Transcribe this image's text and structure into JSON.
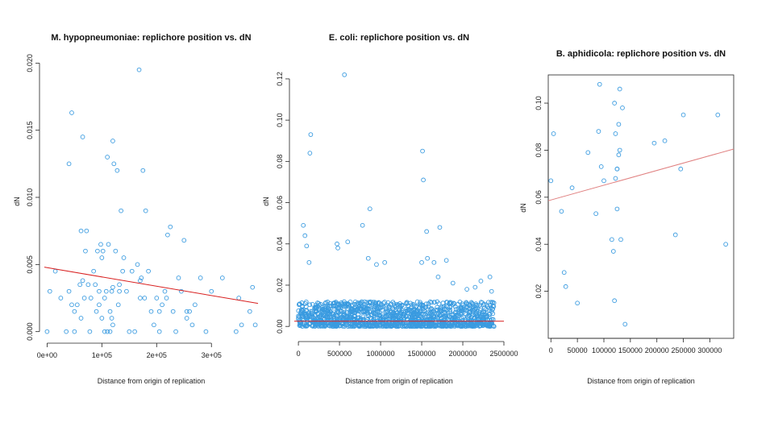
{
  "chart_data": [
    {
      "type": "scatter",
      "title": "M. hypopneumoniae: replichore position vs. dN",
      "xlabel": "Distance from origin of replication",
      "ylabel": "dN",
      "xlim": [
        -5000,
        385000
      ],
      "ylim": [
        -0.0005,
        0.0205
      ],
      "xticks": [
        0,
        100000,
        200000,
        300000
      ],
      "xtick_labels": [
        "0e+00",
        "1e+05",
        "2e+05",
        "3e+05"
      ],
      "yticks": [
        0.0,
        0.005,
        0.01,
        0.015,
        0.02
      ],
      "ytick_labels": [
        "0.000",
        "0.005",
        "0.010",
        "0.015",
        "0.020"
      ],
      "box": false,
      "point_color": "#3a9be0",
      "fit_color": "#d81f1f",
      "fit_line": {
        "x": [
          -5000,
          385000
        ],
        "y": [
          0.0048,
          0.0021
        ]
      },
      "x": [
        0,
        5000,
        15000,
        25000,
        35000,
        40000,
        45000,
        50000,
        55000,
        60000,
        62000,
        65000,
        68000,
        70000,
        72000,
        75000,
        78000,
        80000,
        85000,
        88000,
        90000,
        92000,
        95000,
        95000,
        98000,
        100000,
        102000,
        105000,
        105000,
        108000,
        110000,
        110000,
        112000,
        115000,
        115000,
        118000,
        120000,
        120000,
        122000,
        125000,
        128000,
        130000,
        132000,
        135000,
        138000,
        140000,
        145000,
        150000,
        155000,
        160000,
        165000,
        168000,
        170000,
        172000,
        175000,
        180000,
        185000,
        190000,
        195000,
        200000,
        205000,
        210000,
        215000,
        220000,
        225000,
        230000,
        235000,
        240000,
        245000,
        250000,
        255000,
        260000,
        265000,
        270000,
        280000,
        290000,
        300000,
        320000,
        345000,
        350000,
        355000,
        370000,
        375000,
        380000,
        40000,
        45000,
        50000,
        62000,
        65000,
        100000,
        120000,
        118000,
        132000,
        170000,
        178000,
        205000,
        218000,
        255000
      ],
      "y": [
        0.0,
        0.003,
        0.0045,
        0.0025,
        0.0,
        0.003,
        0.0163,
        0.0,
        0.002,
        0.0035,
        0.0075,
        0.0145,
        0.0025,
        0.006,
        0.0075,
        0.0035,
        0.0,
        0.0025,
        0.0045,
        0.0035,
        0.0015,
        0.006,
        0.003,
        0.002,
        0.0065,
        0.001,
        0.006,
        0.0,
        0.0025,
        0.003,
        0.0,
        0.013,
        0.0065,
        0.0015,
        0.0,
        0.003,
        0.0142,
        0.0005,
        0.0125,
        0.006,
        0.012,
        0.002,
        0.0035,
        0.009,
        0.0045,
        0.0055,
        0.003,
        0.0,
        0.0045,
        0.0,
        0.005,
        0.0195,
        0.0025,
        0.004,
        0.012,
        0.009,
        0.0045,
        0.0015,
        0.0005,
        0.0025,
        0.0,
        0.002,
        0.003,
        0.0072,
        0.0078,
        0.0015,
        0.0,
        0.004,
        0.003,
        0.0068,
        0.0015,
        0.0015,
        0.0005,
        0.002,
        0.004,
        0.0,
        0.003,
        0.004,
        0.0,
        0.0025,
        0.0005,
        0.0015,
        0.0033,
        0.0005,
        0.0125,
        0.002,
        0.0015,
        0.001,
        0.0038,
        0.0055,
        0.0033,
        0.001,
        0.003,
        0.0038,
        0.0025,
        0.0015,
        0.0025,
        0.001
      ]
    },
    {
      "type": "scatter",
      "title": "E. coli: replichore position vs. dN",
      "xlabel": "Distance from origin of replication",
      "ylabel": "dN",
      "xlim": [
        -50000,
        2500000
      ],
      "ylim": [
        -0.005,
        0.127
      ],
      "xticks": [
        0,
        500000,
        1000000,
        1500000,
        2000000,
        2500000
      ],
      "xtick_labels": [
        "0",
        "500000",
        "1000000",
        "1500000",
        "2000000",
        "2500000"
      ],
      "yticks": [
        0.0,
        0.02,
        0.04,
        0.06,
        0.08,
        0.1,
        0.12
      ],
      "ytick_labels": [
        "0.00",
        "0.02",
        "0.04",
        "0.06",
        "0.08",
        "0.10",
        "0.12"
      ],
      "box": false,
      "point_color": "#3a9be0",
      "fit_color": "#d81f1f",
      "fit_line": {
        "x": [
          -50000,
          2500000
        ],
        "y": [
          0.0025,
          0.0025
        ]
      },
      "dense_band": {
        "x_range": [
          0,
          2380000
        ],
        "y_range": [
          0.0,
          0.012
        ],
        "count": 1400
      },
      "x": [
        60000,
        80000,
        100000,
        130000,
        140000,
        150000,
        470000,
        480000,
        560000,
        600000,
        780000,
        850000,
        870000,
        950000,
        1050000,
        1500000,
        1510000,
        1520000,
        1560000,
        1570000,
        1650000,
        1700000,
        1720000,
        1800000,
        1880000,
        2050000,
        2150000,
        2220000,
        2330000,
        2350000
      ],
      "y": [
        0.049,
        0.044,
        0.039,
        0.031,
        0.084,
        0.093,
        0.04,
        0.038,
        0.122,
        0.041,
        0.049,
        0.033,
        0.057,
        0.03,
        0.031,
        0.031,
        0.085,
        0.071,
        0.046,
        0.033,
        0.031,
        0.024,
        0.048,
        0.032,
        0.021,
        0.018,
        0.019,
        0.022,
        0.024,
        0.017
      ]
    },
    {
      "type": "scatter",
      "title": "B. aphidicola: replichore position vs. dN",
      "xlabel": "Distance from origin of replication",
      "ylabel": "dN",
      "xlim": [
        -5000,
        345000
      ],
      "ylim": [
        0.0,
        0.112
      ],
      "xticks": [
        0,
        50000,
        100000,
        150000,
        200000,
        250000,
        300000
      ],
      "xtick_labels": [
        "0",
        "50000",
        "100000",
        "150000",
        "200000",
        "250000",
        "300000"
      ],
      "yticks": [
        0.02,
        0.04,
        0.06,
        0.08,
        0.1
      ],
      "ytick_labels": [
        "0.02",
        "0.04",
        "0.06",
        "0.08",
        "0.10"
      ],
      "box": true,
      "point_color": "#3a9be0",
      "fit_color": "#e08080",
      "fit_line": {
        "x": [
          -5000,
          345000
        ],
        "y": [
          0.0585,
          0.0805
        ]
      },
      "x": [
        0,
        5000,
        20000,
        25000,
        28000,
        40000,
        50000,
        70000,
        85000,
        90000,
        92000,
        95000,
        100000,
        115000,
        118000,
        120000,
        120000,
        122000,
        122000,
        125000,
        125000,
        125000,
        128000,
        128000,
        130000,
        130000,
        132000,
        135000,
        140000,
        195000,
        215000,
        235000,
        245000,
        250000,
        315000,
        330000
      ],
      "y": [
        0.067,
        0.087,
        0.054,
        0.028,
        0.022,
        0.064,
        0.015,
        0.079,
        0.053,
        0.088,
        0.108,
        0.073,
        0.067,
        0.042,
        0.037,
        0.016,
        0.1,
        0.087,
        0.068,
        0.072,
        0.072,
        0.055,
        0.091,
        0.078,
        0.106,
        0.08,
        0.042,
        0.098,
        0.006,
        0.083,
        0.084,
        0.044,
        0.072,
        0.095,
        0.095,
        0.04
      ]
    }
  ]
}
